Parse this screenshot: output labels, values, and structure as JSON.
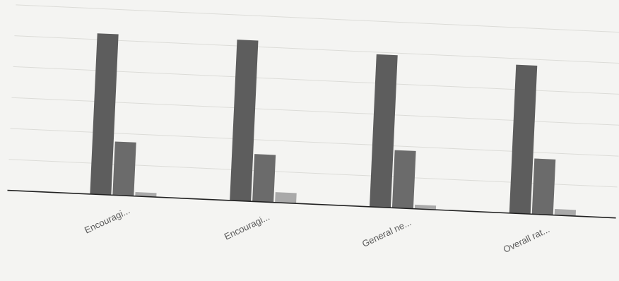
{
  "chart_data": {
    "type": "bar",
    "categories": [
      "Encouragi...",
      "Encouragi...",
      "General ne...",
      "Overall rat..."
    ],
    "series": [
      {
        "values": [
          78,
          78,
          74,
          72
        ],
        "color": "#5d5d5d"
      },
      {
        "values": [
          26,
          23,
          28,
          27
        ],
        "color": "#6b6b6b"
      },
      {
        "values": [
          2,
          5,
          2,
          3
        ],
        "color": "#a9a9a9"
      }
    ],
    "ylim": [
      0,
      90
    ],
    "grid": true,
    "legend": "none",
    "title": "",
    "xlabel": "",
    "ylabel": ""
  }
}
